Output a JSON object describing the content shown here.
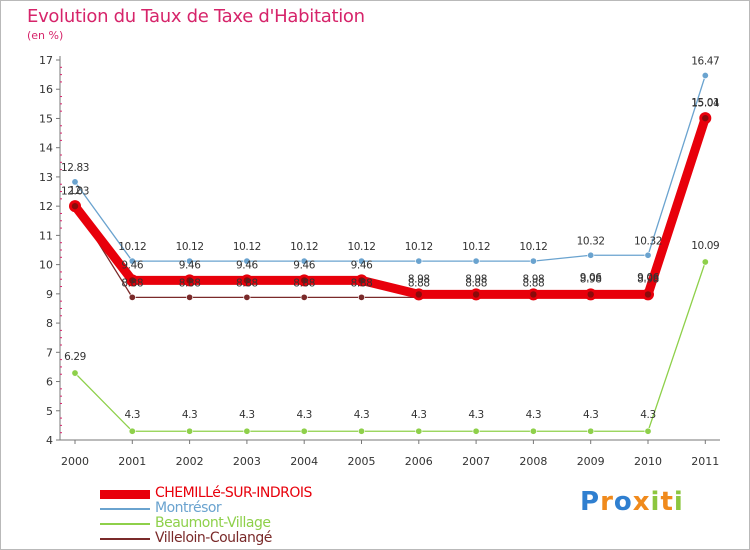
{
  "title": "Evolution du Taux de Taxe d'Habitation",
  "subtitle": "(en %)",
  "brand": [
    "P",
    "r",
    "o",
    "x",
    "i",
    "t",
    "i"
  ],
  "chart_data": {
    "type": "line",
    "title": "Evolution du Taux de Taxe d'Habitation",
    "ylabel": "(en %)",
    "x": [
      "2000",
      "2001",
      "2002",
      "2003",
      "2004",
      "2005",
      "2006",
      "2007",
      "2008",
      "2009",
      "2010",
      "2011"
    ],
    "yticks": [
      "4",
      "5",
      "6",
      "7",
      "8",
      "9",
      "10",
      "11",
      "12",
      "13",
      "14",
      "15",
      "16",
      "17"
    ],
    "ylim": [
      4,
      17
    ],
    "grid": false,
    "legend_position": "bottom-left",
    "series": [
      {
        "name": "CHEMILLé-SUR-INDROIS",
        "color": "#e8000b",
        "values": [
          12,
          9.46,
          9.46,
          9.46,
          9.46,
          9.46,
          8.98,
          8.98,
          8.98,
          8.98,
          8.98,
          15.01
        ],
        "labels": [
          "12",
          "9.46",
          "9.46",
          "9.46",
          "9.46",
          "9.46",
          "8.98",
          "8.98",
          "8.98",
          "8.98",
          "8.98",
          "15.01"
        ]
      },
      {
        "name": "Montrésor",
        "color": "#6aa3cf",
        "values": [
          12.83,
          10.12,
          10.12,
          10.12,
          10.12,
          10.12,
          10.12,
          10.12,
          10.12,
          10.32,
          10.32,
          16.47
        ],
        "labels": [
          "12.83",
          "10.12",
          "10.12",
          "10.12",
          "10.12",
          "10.12",
          "10.12",
          "10.12",
          "10.12",
          "10.32",
          "10.32",
          "16.47"
        ]
      },
      {
        "name": "Beaumont-Village",
        "color": "#8ed04a",
        "values": [
          6.29,
          4.3,
          4.3,
          4.3,
          4.3,
          4.3,
          4.3,
          4.3,
          4.3,
          4.3,
          4.3,
          10.09
        ],
        "labels": [
          "6.29",
          "4.3",
          "4.3",
          "4.3",
          "4.3",
          "4.3",
          "4.3",
          "4.3",
          "4.3",
          "4.3",
          "4.3",
          "10.09"
        ]
      },
      {
        "name": "Villeloin-Coulangé",
        "color": "#7a2a2a",
        "values": [
          12.03,
          8.88,
          8.88,
          8.88,
          8.88,
          8.88,
          8.88,
          8.88,
          8.88,
          9.06,
          9.06,
          15.04
        ],
        "labels": [
          "12.03",
          "8.88",
          "8.88",
          "8.88",
          "8.88",
          "8.88",
          "8.88",
          "8.88",
          "8.88",
          "9.06",
          "9.06",
          "15.04"
        ]
      }
    ]
  }
}
